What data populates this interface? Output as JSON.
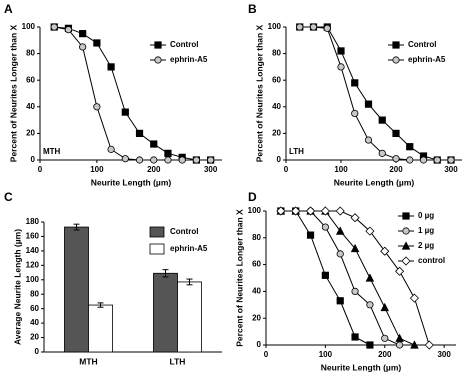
{
  "chart_data": [
    {
      "type": "line",
      "label": "A",
      "annotation": "MTH",
      "x_label": "Neurite Length (µm)",
      "y_label": "Percent of Neurites Longer than X",
      "x": [
        25,
        50,
        75,
        100,
        125,
        150,
        175,
        200,
        225,
        250,
        275,
        300
      ],
      "series": [
        {
          "name": "Control",
          "color": "#000000",
          "marker": "square",
          "marker_fill": "#000000",
          "values": [
            100,
            99,
            95,
            88,
            70,
            36,
            20,
            12,
            5,
            2,
            0,
            0
          ]
        },
        {
          "name": "ephrin-A5",
          "color": "#000000",
          "marker": "circle",
          "marker_fill": "#c8c8c8",
          "values": [
            100,
            98,
            85,
            40,
            8,
            1,
            0,
            0,
            0,
            0,
            0,
            0
          ]
        }
      ],
      "xlim": [
        0,
        320
      ],
      "ylim": [
        0,
        100
      ],
      "xticks": [
        0,
        100,
        200,
        300
      ],
      "yticks": [
        0,
        20,
        40,
        60,
        80,
        100
      ],
      "legend": "upper right"
    },
    {
      "type": "line",
      "label": "B",
      "annotation": "LTH",
      "x_label": "Neurite Length (µm)",
      "y_label": "Percent of Neurites Longer than X",
      "x": [
        25,
        50,
        75,
        100,
        125,
        150,
        175,
        200,
        225,
        250,
        275,
        300
      ],
      "series": [
        {
          "name": "Control",
          "color": "#000000",
          "marker": "square",
          "marker_fill": "#000000",
          "values": [
            100,
            100,
            100,
            82,
            58,
            42,
            30,
            20,
            10,
            3,
            0,
            0
          ]
        },
        {
          "name": "ephrin-A5",
          "color": "#000000",
          "marker": "circle",
          "marker_fill": "#c8c8c8",
          "values": [
            100,
            100,
            99,
            70,
            35,
            15,
            5,
            1,
            0,
            0,
            0,
            0
          ]
        }
      ],
      "xlim": [
        0,
        320
      ],
      "ylim": [
        0,
        100
      ],
      "xticks": [
        0,
        100,
        200,
        300
      ],
      "yticks": [
        0,
        20,
        40,
        60,
        80,
        100
      ],
      "legend": "upper right"
    },
    {
      "type": "bar",
      "label": "C",
      "y_label": "Average Neurite Length (µm)",
      "categories": [
        "MTH",
        "LTH"
      ],
      "series": [
        {
          "name": "Control",
          "color": "#555555",
          "values": [
            173,
            109
          ],
          "errors": [
            4,
            5
          ]
        },
        {
          "name": "ephrin-A5",
          "color": "#ffffff",
          "values": [
            65,
            97
          ],
          "errors": [
            3,
            4
          ]
        }
      ],
      "ylim": [
        0,
        180
      ],
      "yticks": [
        0,
        20,
        40,
        60,
        80,
        100,
        120,
        140,
        160,
        180
      ],
      "legend": "upper right"
    },
    {
      "type": "line",
      "label": "D",
      "x_label": "Neurite Length (µm)",
      "y_label": "Percent of Neurites Longer than X",
      "x": [
        25,
        50,
        75,
        100,
        125,
        150,
        175,
        200,
        225,
        250,
        275
      ],
      "series": [
        {
          "name": "0 µg",
          "color": "#000000",
          "marker": "square",
          "marker_fill": "#000000",
          "values": [
            100,
            100,
            82,
            52,
            33,
            6,
            0,
            null,
            null,
            null,
            null
          ]
        },
        {
          "name": "1 µg",
          "color": "#000000",
          "marker": "circle",
          "marker_fill": "#c8c8c8",
          "values": [
            100,
            100,
            100,
            88,
            68,
            40,
            30,
            5,
            0,
            null,
            null
          ]
        },
        {
          "name": "2 µg",
          "color": "#000000",
          "marker": "triangle",
          "marker_fill": "#000000",
          "values": [
            100,
            100,
            100,
            100,
            85,
            72,
            50,
            28,
            5,
            0,
            null
          ]
        },
        {
          "name": "control",
          "color": "#000000",
          "marker": "diamond",
          "marker_fill": "#ffffff",
          "values": [
            100,
            100,
            100,
            100,
            100,
            95,
            85,
            70,
            55,
            35,
            0
          ]
        }
      ],
      "xlim": [
        0,
        320
      ],
      "ylim": [
        0,
        100
      ],
      "xticks": [
        0,
        100,
        200,
        300
      ],
      "yticks": [
        0,
        20,
        40,
        60,
        80,
        100
      ],
      "legend": "upper right"
    }
  ]
}
